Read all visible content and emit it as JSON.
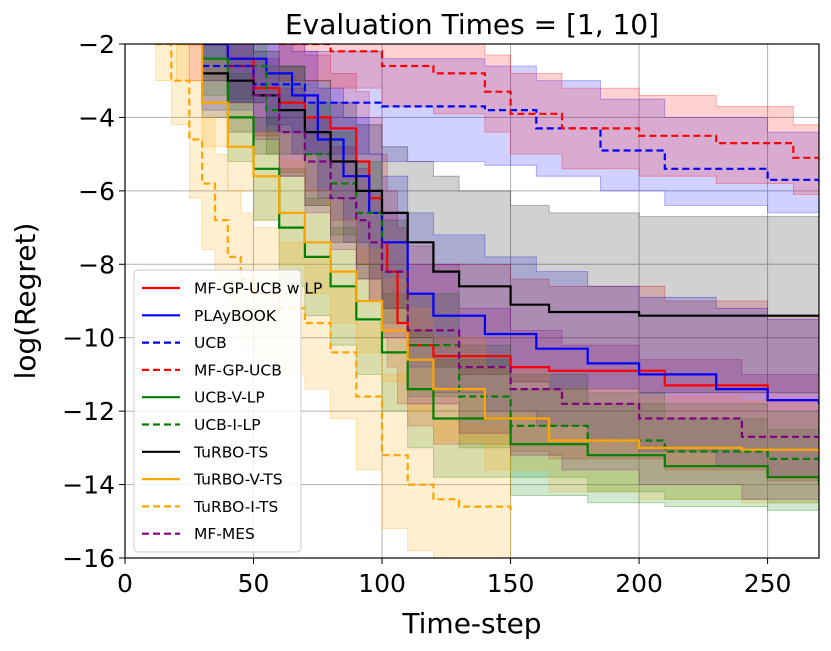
{
  "chart_data": {
    "type": "line",
    "title": "Evaluation Times = [1, 10]",
    "xlabel": "Time-step",
    "ylabel": "log(Regret)",
    "xlim": [
      0,
      270
    ],
    "ylim": [
      -16,
      -2
    ],
    "xticks": [
      0,
      50,
      100,
      150,
      200,
      250
    ],
    "yticks": [
      -16,
      -14,
      -12,
      -10,
      -8,
      -6,
      -4,
      -2
    ],
    "xtick_labels": [
      "0",
      "50",
      "100",
      "150",
      "200",
      "250"
    ],
    "ytick_labels": [
      "−16",
      "−14",
      "−12",
      "−10",
      "−8",
      "−6",
      "−4",
      "−2"
    ],
    "grid": true,
    "legend_position": "lower-left",
    "series": [
      {
        "name": "MF-GP-UCB w LP",
        "color": "#ff0000",
        "dash": false,
        "band": true,
        "x": [
          25,
          40,
          50,
          60,
          70,
          80,
          90,
          95,
          100,
          102,
          106,
          110,
          120,
          150,
          165,
          210,
          250,
          270
        ],
        "y": [
          -2,
          -2.4,
          -3.2,
          -3.6,
          -4,
          -4.3,
          -5.2,
          -6.2,
          -7.4,
          -8.2,
          -9.6,
          -10.2,
          -10.5,
          -10.8,
          -10.9,
          -11.3,
          -11.7,
          -11.8
        ],
        "upper": [
          -1,
          -1.2,
          -1.6,
          -2,
          -2.3,
          -2.8,
          -3.3,
          -4,
          -5,
          -6,
          -7,
          -7.5,
          -8,
          -8.4,
          -8.6,
          -9,
          -9.4,
          -9.5
        ],
        "lower": [
          -3,
          -3.5,
          -4.5,
          -5.5,
          -6,
          -6.8,
          -8,
          -9,
          -10,
          -10.8,
          -11.8,
          -12.4,
          -12.9,
          -13.1,
          -13.3,
          -13.6,
          -13.9,
          -14
        ]
      },
      {
        "name": "PLAyBOOK",
        "color": "#0000ff",
        "dash": false,
        "band": true,
        "x": [
          30,
          40,
          55,
          65,
          75,
          85,
          95,
          100,
          110,
          120,
          140,
          160,
          180,
          200,
          230,
          250,
          270
        ],
        "y": [
          -2,
          -2.4,
          -2.8,
          -3.4,
          -4.6,
          -5.6,
          -6.6,
          -7.4,
          -8.8,
          -9.4,
          -9.9,
          -10.3,
          -10.7,
          -11,
          -11.4,
          -11.7,
          -11.8
        ],
        "upper": [
          -1,
          -1.2,
          -1.6,
          -2.2,
          -3.2,
          -4,
          -5,
          -5.6,
          -6.6,
          -7.2,
          -7.8,
          -8.2,
          -8.6,
          -8.9,
          -9.2,
          -9.5,
          -9.6
        ],
        "lower": [
          -3,
          -3.6,
          -4.2,
          -5,
          -6.2,
          -7.4,
          -8.4,
          -9.2,
          -10.8,
          -11.5,
          -12,
          -12.4,
          -12.8,
          -13.1,
          -13.5,
          -13.8,
          -13.9
        ]
      },
      {
        "name": "UCB",
        "color": "#0000ff",
        "dash": true,
        "band": true,
        "x": [
          30,
          50,
          70,
          100,
          140,
          160,
          185,
          210,
          250,
          270
        ],
        "y": [
          -2.6,
          -3.1,
          -3.6,
          -3.7,
          -3.8,
          -4.3,
          -4.9,
          -5.4,
          -5.7,
          -5.8
        ],
        "upper": [
          -1.5,
          -1.8,
          -2.2,
          -2.4,
          -2.6,
          -3,
          -3.5,
          -4,
          -4.4,
          -4.6
        ],
        "lower": [
          -3.8,
          -4.4,
          -5,
          -5.2,
          -5.3,
          -5.6,
          -6,
          -6.4,
          -6.6,
          -6.8
        ]
      },
      {
        "name": "MF-GP-UCB",
        "color": "#ff0000",
        "dash": true,
        "band": true,
        "x": [
          60,
          80,
          100,
          120,
          140,
          150,
          170,
          200,
          230,
          260,
          270
        ],
        "y": [
          -2,
          -2.2,
          -2.6,
          -2.8,
          -3.3,
          -3.9,
          -4.3,
          -4.5,
          -4.7,
          -5.1,
          -5.2
        ],
        "upper": [
          -1,
          -1.2,
          -1.5,
          -1.8,
          -2.3,
          -2.8,
          -3.2,
          -3.4,
          -3.7,
          -4.2,
          -4.3
        ],
        "lower": [
          -3,
          -3.2,
          -3.7,
          -3.9,
          -4.4,
          -5,
          -5.4,
          -5.6,
          -5.8,
          -6.1,
          -6.2
        ]
      },
      {
        "name": "UCB-V-LP",
        "color": "#008000",
        "dash": false,
        "band": true,
        "x": [
          30,
          40,
          50,
          60,
          70,
          80,
          90,
          100,
          110,
          120,
          150,
          180,
          210,
          250,
          270
        ],
        "y": [
          -2.4,
          -4,
          -5.4,
          -7,
          -7.8,
          -8.6,
          -9.5,
          -10.4,
          -11.4,
          -12.2,
          -12.9,
          -13.2,
          -13.5,
          -13.8,
          -14
        ],
        "upper": [
          -1.5,
          -2.8,
          -4,
          -5.4,
          -6.2,
          -7,
          -8,
          -8.8,
          -9.8,
          -10.6,
          -11.4,
          -11.8,
          -12.2,
          -12.5,
          -12.7
        ],
        "lower": [
          -3.4,
          -5.2,
          -6.8,
          -8.6,
          -9.4,
          -10.2,
          -11,
          -12,
          -13,
          -13.8,
          -14.3,
          -14.5,
          -14.6,
          -14.7,
          -14.8
        ]
      },
      {
        "name": "UCB-I-LP",
        "color": "#008000",
        "dash": true,
        "band": true,
        "x": [
          40,
          55,
          70,
          80,
          90,
          100,
          110,
          130,
          150,
          180,
          210,
          250,
          270
        ],
        "y": [
          -2.6,
          -3.8,
          -5,
          -5.8,
          -6.6,
          -8.2,
          -10.2,
          -11.6,
          -12.4,
          -12.8,
          -13.1,
          -13.3,
          -13.4
        ],
        "upper": [
          -1.6,
          -2.6,
          -3.6,
          -4.4,
          -5.2,
          -6.8,
          -8.8,
          -10.2,
          -11,
          -11.5,
          -11.8,
          -12,
          -12.2
        ],
        "lower": [
          -3.6,
          -5,
          -6.4,
          -7.2,
          -8,
          -9.6,
          -11.6,
          -13,
          -13.8,
          -14.2,
          -14.4,
          -14.5,
          -14.6
        ]
      },
      {
        "name": "TuRBO-TS",
        "color": "#000000",
        "dash": false,
        "band": true,
        "x": [
          30,
          40,
          50,
          60,
          70,
          80,
          90,
          100,
          110,
          120,
          130,
          150,
          165,
          200,
          270
        ],
        "y": [
          -2.8,
          -3,
          -3.4,
          -3.8,
          -4.4,
          -5.2,
          -6,
          -6.6,
          -7.4,
          -8.2,
          -8.6,
          -9.1,
          -9.3,
          -9.4,
          -9.45
        ],
        "upper": [
          -1.5,
          -1.8,
          -2.2,
          -2.6,
          -3,
          -3.6,
          -4.2,
          -4.8,
          -5.2,
          -5.6,
          -6,
          -6.4,
          -6.6,
          -6.7,
          -6.8
        ],
        "lower": [
          -4,
          -4.4,
          -5,
          -5.6,
          -6.4,
          -7.4,
          -8.4,
          -9.2,
          -10,
          -10.8,
          -11,
          -11.2,
          -11.4,
          -11.5,
          -11.5
        ]
      },
      {
        "name": "TuRBO-V-TS",
        "color": "#ffa500",
        "dash": false,
        "band": true,
        "x": [
          20,
          30,
          40,
          50,
          60,
          70,
          80,
          90,
          100,
          110,
          120,
          140,
          165,
          200,
          240,
          270
        ],
        "y": [
          -2,
          -3.6,
          -4.8,
          -5.6,
          -6.6,
          -7.4,
          -8.2,
          -9,
          -9.8,
          -10.6,
          -11.4,
          -12.2,
          -12.8,
          -13,
          -13.05,
          -13.1
        ],
        "upper": [
          -1,
          -2.4,
          -3.6,
          -4.4,
          -5.2,
          -6,
          -6.8,
          -7.6,
          -8.4,
          -9.2,
          -10,
          -10.8,
          -11.4,
          -11.6,
          -11.7,
          -11.8
        ],
        "lower": [
          -3,
          -4.8,
          -6,
          -6.8,
          -8,
          -8.8,
          -9.6,
          -10.4,
          -11.2,
          -12,
          -12.8,
          -13.6,
          -14.2,
          -14.4,
          -14.5,
          -14.6
        ]
      },
      {
        "name": "TuRBO-I-TS",
        "color": "#ffa500",
        "dash": true,
        "band": true,
        "x": [
          12,
          18,
          25,
          30,
          35,
          40,
          45,
          50,
          60,
          70,
          80,
          90,
          100,
          110,
          120,
          130,
          150
        ],
        "y": [
          -2,
          -3,
          -4.6,
          -5.8,
          -6.8,
          -7.8,
          -8.4,
          -8.8,
          -9.2,
          -9.6,
          -10.4,
          -11.6,
          -13.2,
          -14,
          -14.4,
          -14.6,
          -14.8
        ],
        "upper": [
          -1,
          -2,
          -3,
          -4,
          -5,
          -6,
          -6.6,
          -7,
          -7.4,
          -7.8,
          -8.6,
          -9.6,
          -11,
          -11.8,
          -12.2,
          -12.4,
          -12.6
        ],
        "lower": [
          -3,
          -4.2,
          -6.2,
          -7.6,
          -8.6,
          -9.6,
          -10.2,
          -10.6,
          -11,
          -11.4,
          -12.2,
          -13.6,
          -15.2,
          -15.8,
          -16,
          -16,
          -16
        ]
      },
      {
        "name": "MF-MES",
        "color": "#800080",
        "dash": true,
        "band": true,
        "x": [
          40,
          50,
          60,
          70,
          80,
          90,
          95,
          100,
          110,
          130,
          150,
          170,
          200,
          240,
          270
        ],
        "y": [
          -2.6,
          -3.4,
          -4.4,
          -5.2,
          -6.2,
          -6.8,
          -7.4,
          -8.2,
          -9.8,
          -10.8,
          -11.4,
          -11.8,
          -12.2,
          -12.7,
          -12.9
        ],
        "upper": [
          -1.6,
          -2.4,
          -3.2,
          -4,
          -4.8,
          -5.4,
          -6,
          -6.6,
          -8,
          -9.2,
          -9.8,
          -10.2,
          -10.6,
          -11,
          -11.2
        ],
        "lower": [
          -3.6,
          -4.6,
          -5.6,
          -6.6,
          -7.6,
          -8.4,
          -9,
          -10,
          -11.8,
          -12.6,
          -13.2,
          -13.6,
          -14,
          -14.4,
          -14.6
        ]
      }
    ]
  }
}
